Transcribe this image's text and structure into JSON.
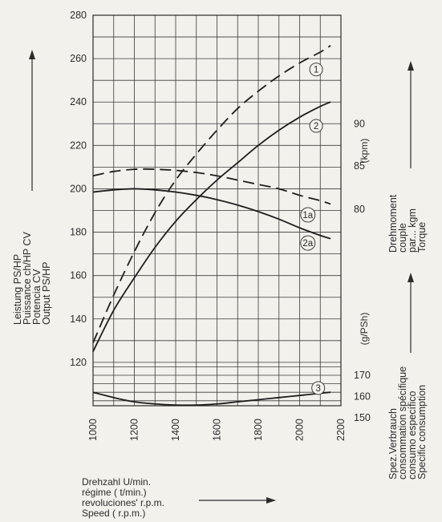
{
  "chart_data": {
    "type": "line",
    "x": {
      "label_lines": [
        "Drehzahl U/min.",
        "régime ( t/min.)",
        "revoluciones' r.p.m.",
        "Speed ( r.p.m.)"
      ],
      "ticks": [
        1000,
        1200,
        1400,
        1600,
        1800,
        2000,
        2200
      ],
      "range": [
        1000,
        2200
      ]
    },
    "y_left": {
      "label_lines": [
        "Leistung PS/HP",
        "Puissance ch/HP CV",
        "Potencia CV",
        "Output PS/HP"
      ],
      "ticks": [
        120,
        140,
        160,
        180,
        200,
        220,
        240,
        260,
        280
      ],
      "range": [
        100,
        280
      ]
    },
    "y_torque": {
      "unit": "(kpm)",
      "label_lines": [
        "Drehmoment",
        "couple",
        "par... kgm",
        "Torque"
      ],
      "ticks": [
        80,
        85,
        90
      ]
    },
    "y_consumption": {
      "unit": "(g/PSh)",
      "label_lines": [
        "Spez.Verbrauch",
        "consommation spécifique",
        "consumo específico",
        "Specific consumption"
      ],
      "ticks": [
        150,
        160,
        170
      ]
    },
    "grid": true,
    "series": [
      {
        "name": "1",
        "axis": "power",
        "style": "dashed",
        "x": [
          1000,
          1100,
          1200,
          1300,
          1400,
          1500,
          1600,
          1700,
          1800,
          1900,
          2000,
          2100,
          2150
        ],
        "y": [
          129,
          151,
          171,
          189,
          204,
          216,
          227,
          237,
          245,
          252,
          258,
          263,
          266
        ]
      },
      {
        "name": "2",
        "axis": "power",
        "style": "solid",
        "x": [
          1000,
          1100,
          1200,
          1300,
          1400,
          1500,
          1600,
          1700,
          1800,
          1900,
          2000,
          2100,
          2150
        ],
        "y": [
          125,
          144,
          159,
          173,
          185,
          195,
          204,
          212,
          220,
          227,
          233,
          238,
          240
        ]
      },
      {
        "name": "1a",
        "axis": "power",
        "style": "dashed",
        "x": [
          1000,
          1100,
          1200,
          1300,
          1400,
          1500,
          1600,
          1700,
          1800,
          1900,
          2000,
          2100,
          2150
        ],
        "y": [
          206,
          208,
          209,
          209,
          208.5,
          207.5,
          206,
          204,
          202,
          200,
          197,
          194.5,
          193
        ]
      },
      {
        "name": "2a",
        "axis": "power",
        "style": "solid",
        "x": [
          1000,
          1100,
          1200,
          1300,
          1400,
          1500,
          1600,
          1700,
          1800,
          1900,
          2000,
          2100,
          2150
        ],
        "y": [
          198.5,
          199.5,
          200,
          199.5,
          198.5,
          197,
          195,
          192.5,
          189.5,
          186,
          182,
          178.5,
          177
        ]
      },
      {
        "name": "3",
        "axis": "consumption",
        "style": "solid",
        "x": [
          1000,
          1100,
          1200,
          1300,
          1400,
          1500,
          1600,
          1700,
          1800,
          1900,
          2000,
          2100,
          2150
        ],
        "y": [
          162,
          159.5,
          157.5,
          156.5,
          156,
          156,
          156.5,
          157.5,
          158.5,
          159.5,
          160.5,
          161.5,
          162
        ]
      }
    ]
  }
}
